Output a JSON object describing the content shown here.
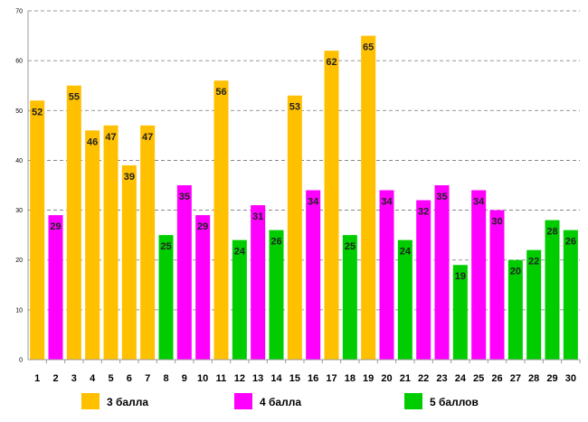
{
  "chart_data": {
    "type": "bar",
    "title": "",
    "xlabel": "",
    "ylabel": "",
    "ylim": [
      0,
      70
    ],
    "yticks": [
      0,
      10,
      20,
      30,
      40,
      50,
      60,
      70
    ],
    "grid": true,
    "legend_position": "bottom",
    "categories": [
      "1",
      "2",
      "3",
      "4",
      "5",
      "6",
      "7",
      "8",
      "9",
      "10",
      "11",
      "12",
      "13",
      "14",
      "15",
      "16",
      "17",
      "18",
      "19",
      "20",
      "21",
      "22",
      "23",
      "24",
      "25",
      "26",
      "27",
      "28",
      "29",
      "30"
    ],
    "values": [
      52,
      29,
      55,
      46,
      47,
      39,
      47,
      25,
      35,
      29,
      56,
      24,
      31,
      26,
      53,
      34,
      62,
      25,
      65,
      34,
      24,
      32,
      35,
      19,
      34,
      30,
      20,
      22,
      28,
      26
    ],
    "value_labels": [
      "52",
      "29",
      "55",
      "46",
      "47",
      "39",
      "47",
      "25",
      "35",
      "29",
      "56",
      "24",
      "31",
      "26",
      "53",
      "34",
      "62",
      "25",
      "65",
      "34",
      "24",
      "32",
      "35",
      "19",
      "34",
      "30",
      "20",
      "22",
      "28",
      "26"
    ],
    "bar_series": [
      0,
      1,
      0,
      0,
      0,
      0,
      0,
      2,
      1,
      1,
      0,
      2,
      1,
      2,
      0,
      1,
      0,
      2,
      0,
      1,
      2,
      1,
      1,
      2,
      1,
      1,
      2,
      2,
      2,
      2
    ],
    "series": [
      {
        "name": "3 балла",
        "color": "#FFC000"
      },
      {
        "name": "4 балла",
        "color": "#FF00FF"
      },
      {
        "name": "5 баллов",
        "color": "#00CC00"
      }
    ]
  }
}
